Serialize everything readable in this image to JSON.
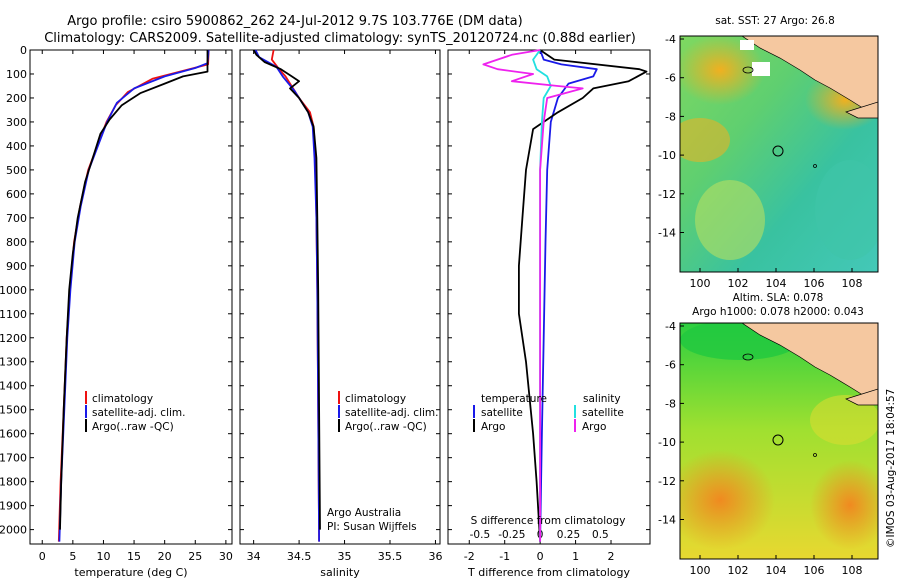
{
  "title": {
    "line1": "Argo profile: csiro 5900862_262 24-Jul-2012 9.7S 103.776E (DM data)",
    "line2": "Climatology: CARS2009. Satellite-adjusted climatology: synTS_20120724.nc (0.88d earlier)"
  },
  "colors": {
    "climatology": "#ee1111",
    "satellite": "#1a1ae8",
    "argo": "#000000",
    "sal_satellite": "#22e0e0",
    "sal_argo": "#ee22ee",
    "land": "#f5c8a0"
  },
  "chart_data": [
    {
      "type": "line",
      "name": "temperature-profile",
      "xlabel": "temperature (deg C)",
      "xlim": [
        -2,
        31
      ],
      "xticks": [
        0,
        5,
        10,
        15,
        20,
        25,
        30
      ],
      "ylim": [
        0,
        2060
      ],
      "yticks": [
        0,
        100,
        200,
        300,
        400,
        500,
        600,
        700,
        800,
        900,
        1000,
        1100,
        1200,
        1300,
        1400,
        1500,
        1600,
        1700,
        1800,
        1900,
        2000
      ],
      "legend": [
        "climatology",
        "satellite-adj. clim.",
        "Argo(..raw -QC)"
      ],
      "series": [
        {
          "name": "climatology",
          "points": [
            [
              27.2,
              0
            ],
            [
              27.1,
              60
            ],
            [
              24,
              80
            ],
            [
              18,
              120
            ],
            [
              14,
              175
            ],
            [
              12,
              230
            ],
            [
              10.5,
              300
            ],
            [
              9,
              400
            ],
            [
              7.5,
              500
            ],
            [
              6.2,
              650
            ],
            [
              5.2,
              800
            ],
            [
              4.5,
              1000
            ],
            [
              4,
              1200
            ],
            [
              3.5,
              1500
            ],
            [
              3,
              1800
            ],
            [
              2.7,
              2050
            ]
          ]
        },
        {
          "name": "satellite-adj. clim.",
          "points": [
            [
              27.2,
              0
            ],
            [
              27,
              55
            ],
            [
              25,
              75
            ],
            [
              20,
              110
            ],
            [
              15,
              160
            ],
            [
              12.2,
              220
            ],
            [
              10.6,
              300
            ],
            [
              9.1,
              400
            ],
            [
              7.6,
              500
            ],
            [
              6.3,
              650
            ],
            [
              5.3,
              800
            ],
            [
              4.6,
              1000
            ],
            [
              4.1,
              1200
            ],
            [
              3.6,
              1500
            ],
            [
              3.1,
              1800
            ],
            [
              2.8,
              2050
            ]
          ]
        },
        {
          "name": "Argo(..raw -QC)",
          "points": [
            [
              27,
              0
            ],
            [
              27,
              90
            ],
            [
              23,
              110
            ],
            [
              20,
              140
            ],
            [
              16,
              180
            ],
            [
              13,
              230
            ],
            [
              11,
              290
            ],
            [
              9.5,
              350
            ],
            [
              8.5,
              430
            ],
            [
              7,
              550
            ],
            [
              5.8,
              700
            ],
            [
              5,
              850
            ],
            [
              4.4,
              1000
            ],
            [
              4,
              1200
            ],
            [
              3.5,
              1500
            ],
            [
              3.1,
              1800
            ],
            [
              2.9,
              2000
            ]
          ]
        }
      ]
    },
    {
      "type": "line",
      "name": "salinity-profile",
      "xlabel": "salinity",
      "xlim": [
        33.85,
        36.05
      ],
      "xticks": [
        34,
        34.5,
        35,
        35.5,
        36
      ],
      "ylim": [
        0,
        2060
      ],
      "legend": [
        "climatology",
        "satellite-adj. clim.",
        "Argo(..raw -QC)"
      ],
      "notes": [
        "Argo Australia",
        "PI: Susan Wijffels"
      ],
      "series": [
        {
          "name": "climatology",
          "points": [
            [
              34.22,
              0
            ],
            [
              34.2,
              40
            ],
            [
              34.28,
              80
            ],
            [
              34.35,
              110
            ],
            [
              34.5,
              200
            ],
            [
              34.62,
              260
            ],
            [
              34.66,
              320
            ],
            [
              34.68,
              450
            ],
            [
              34.69,
              700
            ],
            [
              34.7,
              1000
            ],
            [
              34.71,
              1500
            ],
            [
              34.72,
              2050
            ]
          ]
        },
        {
          "name": "satellite-adj. clim.",
          "points": [
            [
              34.02,
              0
            ],
            [
              34.06,
              30
            ],
            [
              34.25,
              70
            ],
            [
              34.32,
              110
            ],
            [
              34.45,
              170
            ],
            [
              34.6,
              260
            ],
            [
              34.65,
              320
            ],
            [
              34.67,
              450
            ],
            [
              34.69,
              700
            ],
            [
              34.7,
              1000
            ],
            [
              34.71,
              1500
            ],
            [
              34.72,
              2050
            ]
          ]
        },
        {
          "name": "Argo(..raw -QC)",
          "points": [
            [
              34.0,
              0
            ],
            [
              34.03,
              20
            ],
            [
              34.12,
              50
            ],
            [
              34.3,
              80
            ],
            [
              34.42,
              110
            ],
            [
              34.5,
              130
            ],
            [
              34.4,
              160
            ],
            [
              34.5,
              200
            ],
            [
              34.6,
              260
            ],
            [
              34.66,
              320
            ],
            [
              34.69,
              450
            ],
            [
              34.7,
              700
            ],
            [
              34.71,
              1000
            ],
            [
              34.72,
              1500
            ],
            [
              34.73,
              2000
            ]
          ]
        }
      ]
    },
    {
      "type": "line",
      "name": "difference-profile",
      "xlabel": "T difference from climatology",
      "xlabel_top": "S difference from climatology",
      "xlim": [
        -2.6,
        3.1
      ],
      "xticks": [
        -2,
        -1,
        0,
        1,
        2
      ],
      "s_ticks": [
        {
          "pos": -1.7,
          "label": "-0.5"
        },
        {
          "pos": -0.8,
          "label": "-0.25"
        },
        {
          "pos": 0,
          "label": "0"
        },
        {
          "pos": 0.8,
          "label": "0.25"
        },
        {
          "pos": 1.7,
          "label": "0.5"
        }
      ],
      "ylim": [
        0,
        2060
      ],
      "legend": {
        "temperature": [
          "satellite",
          "Argo"
        ],
        "salinity": [
          "satellite",
          "Argo"
        ]
      },
      "series": [
        {
          "name": "T satellite",
          "points": [
            [
              0,
              0
            ],
            [
              0.1,
              40
            ],
            [
              0.6,
              60
            ],
            [
              1.6,
              80
            ],
            [
              1.5,
              110
            ],
            [
              0.8,
              140
            ],
            [
              0.5,
              200
            ],
            [
              0.3,
              300
            ],
            [
              0.2,
              500
            ],
            [
              0.15,
              800
            ],
            [
              0.1,
              1200
            ],
            [
              0.05,
              1600
            ],
            [
              0,
              2050
            ]
          ]
        },
        {
          "name": "T Argo",
          "points": [
            [
              0,
              0
            ],
            [
              0.4,
              40
            ],
            [
              2.8,
              80
            ],
            [
              3,
              90
            ],
            [
              2.5,
              130
            ],
            [
              1.5,
              160
            ],
            [
              1.2,
              200
            ],
            [
              0.5,
              260
            ],
            [
              -0.2,
              330
            ],
            [
              -0.4,
              500
            ],
            [
              -0.5,
              700
            ],
            [
              -0.6,
              900
            ],
            [
              -0.6,
              1100
            ],
            [
              -0.4,
              1300
            ],
            [
              -0.2,
              1600
            ],
            [
              -0.1,
              1800
            ],
            [
              0,
              2050
            ]
          ]
        },
        {
          "name": "S satellite",
          "points": [
            [
              0,
              0
            ],
            [
              -0.2,
              40
            ],
            [
              -0.1,
              80
            ],
            [
              0.2,
              110
            ],
            [
              0.3,
              150
            ],
            [
              0.1,
              200
            ],
            [
              0.05,
              300
            ],
            [
              0,
              500
            ],
            [
              0,
              1000
            ],
            [
              0,
              2050
            ]
          ]
        },
        {
          "name": "S Argo",
          "points": [
            [
              0,
              0
            ],
            [
              -0.8,
              20
            ],
            [
              -1.6,
              60
            ],
            [
              -1.2,
              80
            ],
            [
              -0.2,
              100
            ],
            [
              -0.8,
              130
            ],
            [
              0.5,
              150
            ],
            [
              1.2,
              160
            ],
            [
              0.2,
              200
            ],
            [
              0.1,
              300
            ],
            [
              0,
              500
            ],
            [
              0,
              1000
            ],
            [
              0,
              2050
            ]
          ]
        }
      ]
    }
  ],
  "maps": [
    {
      "title": "sat. SST: 27 Argo: 26.8",
      "xticks": [
        "100",
        "102",
        "104",
        "106",
        "108"
      ],
      "yticks": [
        "-4",
        "-6",
        "-8",
        "-10",
        "-12",
        "-14"
      ]
    },
    {
      "title1": "Altim. SLA: 0.078",
      "title2": "Argo h1000: 0.078 h2000: 0.043",
      "xticks": [
        "100",
        "102",
        "104",
        "106",
        "108"
      ],
      "yticks": [
        "-4",
        "-6",
        "-8",
        "-10",
        "-12",
        "-14"
      ]
    }
  ],
  "credit": "©IMOS 03-Aug-2017 18:04:57"
}
